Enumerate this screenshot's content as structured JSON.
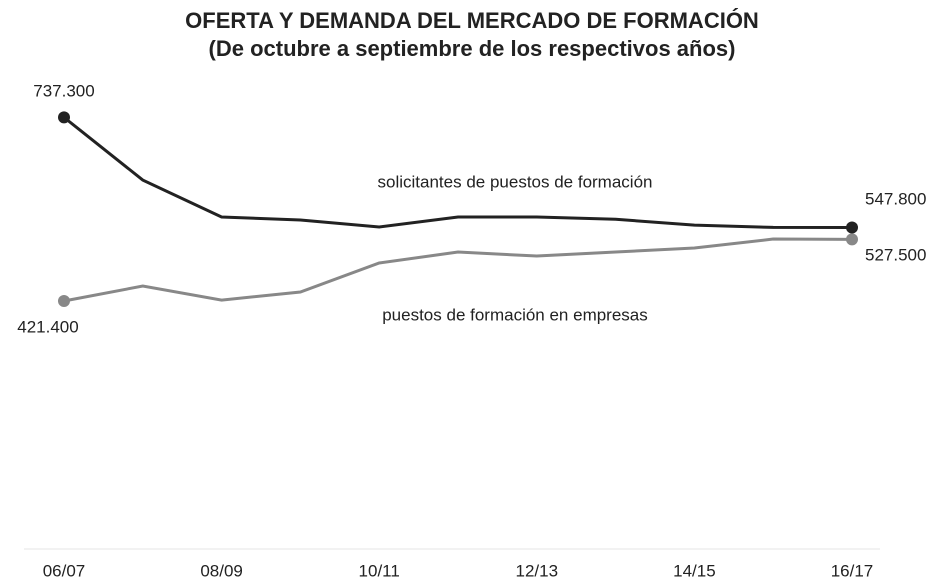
{
  "chart_data": {
    "type": "line",
    "title": "OFERTA Y DEMANDA DEL MERCADO DE FORMACIÓN",
    "subtitle": "(De octubre a septiembre de los respectivos años)",
    "categories": [
      "06/07",
      null,
      "08/09",
      null,
      "10/11",
      null,
      "12/13",
      null,
      "14/15",
      null,
      "16/17"
    ],
    "series": [
      {
        "name": "solicitantes de puestos de formación",
        "color": "#222222",
        "values": [
          737300,
          629500,
          565900,
          560700,
          548700,
          566000,
          566000,
          562000,
          552000,
          548000,
          547800
        ],
        "value_labels": [
          "737.300",
          null,
          null,
          null,
          null,
          null,
          null,
          null,
          null,
          null,
          "547.800"
        ]
      },
      {
        "name": "puestos de formación en empresas",
        "color": "#888888",
        "values": [
          421400,
          447200,
          423000,
          436900,
          486800,
          505700,
          498800,
          505700,
          512600,
          528000,
          527500
        ],
        "value_labels": [
          "421.400",
          null,
          null,
          null,
          null,
          null,
          null,
          null,
          null,
          null,
          "527.500"
        ]
      }
    ],
    "ylim": [
      0,
      750000
    ]
  }
}
